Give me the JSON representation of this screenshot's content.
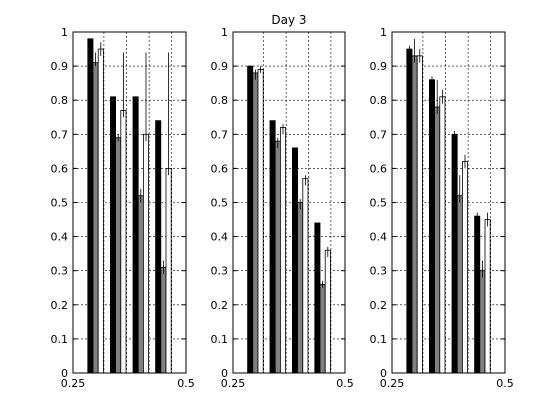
{
  "chart_data": [
    {
      "type": "bar",
      "title": "",
      "xlabel": "",
      "ylabel": "",
      "xlim": [
        0.25,
        0.5
      ],
      "ylim": [
        0,
        1
      ],
      "x_ticks": [
        0.25,
        0.5
      ],
      "x_tick_labels": [
        "0.25",
        "0.5"
      ],
      "y_ticks": [
        0,
        0.1,
        0.2,
        0.3,
        0.4,
        0.5,
        0.6,
        0.7,
        0.8,
        0.9,
        1
      ],
      "y_tick_labels": [
        "0",
        "0.1",
        "0.2",
        "0.3",
        "0.4",
        "0.5",
        "0.6",
        "0.7",
        "0.8",
        "0.9",
        "1"
      ],
      "grid": true,
      "group_x": [
        0.3,
        0.35,
        0.4,
        0.45
      ],
      "series": [
        {
          "color": "#000000",
          "values": [
            0.98,
            0.81,
            0.81,
            0.74
          ],
          "err_upper": [
            0.98,
            0.81,
            0.81,
            0.74
          ],
          "err_lower": [
            0.98,
            0.81,
            0.81,
            0.74
          ]
        },
        {
          "color": "#808080",
          "values": [
            0.91,
            0.69,
            0.52,
            0.31
          ],
          "err_upper": [
            0.94,
            0.7,
            0.54,
            0.33
          ],
          "err_lower": [
            0.9,
            0.68,
            0.5,
            0.29
          ]
        },
        {
          "color": "#ffffff",
          "values": [
            0.95,
            0.77,
            0.7,
            0.6
          ],
          "err_upper": [
            0.97,
            0.94,
            0.94,
            0.94
          ],
          "err_lower": [
            0.93,
            0.75,
            0.68,
            0.58
          ]
        }
      ]
    },
    {
      "type": "bar",
      "title": "Day 3",
      "xlabel": "",
      "ylabel": "",
      "xlim": [
        0.25,
        0.5
      ],
      "ylim": [
        0,
        1
      ],
      "x_ticks": [
        0.25,
        0.5
      ],
      "x_tick_labels": [
        "0.25",
        "0.5"
      ],
      "y_ticks": [
        0,
        0.1,
        0.2,
        0.3,
        0.4,
        0.5,
        0.6,
        0.7,
        0.8,
        0.9,
        1
      ],
      "y_tick_labels": [
        "0",
        "0.1",
        "0.2",
        "0.3",
        "0.4",
        "0.5",
        "0.6",
        "0.7",
        "0.8",
        "0.9",
        "1"
      ],
      "grid": true,
      "group_x": [
        0.3,
        0.35,
        0.4,
        0.45
      ],
      "series": [
        {
          "color": "#000000",
          "values": [
            0.9,
            0.74,
            0.66,
            0.44
          ],
          "err_upper": [
            0.9,
            0.74,
            0.66,
            0.44
          ],
          "err_lower": [
            0.9,
            0.74,
            0.66,
            0.44
          ]
        },
        {
          "color": "#808080",
          "values": [
            0.88,
            0.68,
            0.5,
            0.26
          ],
          "err_upper": [
            0.89,
            0.69,
            0.51,
            0.27
          ],
          "err_lower": [
            0.86,
            0.66,
            0.48,
            0.25
          ]
        },
        {
          "color": "#ffffff",
          "values": [
            0.89,
            0.72,
            0.57,
            0.36
          ],
          "err_upper": [
            0.9,
            0.73,
            0.58,
            0.37
          ],
          "err_lower": [
            0.88,
            0.7,
            0.55,
            0.34
          ]
        }
      ]
    },
    {
      "type": "bar",
      "title": "",
      "xlabel": "",
      "ylabel": "",
      "xlim": [
        0.25,
        0.5
      ],
      "ylim": [
        0,
        1
      ],
      "x_ticks": [
        0.25,
        0.5
      ],
      "x_tick_labels": [
        "0.25",
        "0.5"
      ],
      "y_ticks": [
        0,
        0.1,
        0.2,
        0.3,
        0.4,
        0.5,
        0.6,
        0.7,
        0.8,
        0.9,
        1
      ],
      "y_tick_labels": [
        "0",
        "0.1",
        "0.2",
        "0.3",
        "0.4",
        "0.5",
        "0.6",
        "0.7",
        "0.8",
        "0.9",
        "1"
      ],
      "grid": true,
      "group_x": [
        0.3,
        0.35,
        0.4,
        0.45
      ],
      "series": [
        {
          "color": "#000000",
          "values": [
            0.95,
            0.86,
            0.7,
            0.46
          ],
          "err_upper": [
            0.96,
            0.87,
            0.71,
            0.47
          ],
          "err_lower": [
            0.94,
            0.85,
            0.69,
            0.45
          ]
        },
        {
          "color": "#808080",
          "values": [
            0.93,
            0.78,
            0.52,
            0.3
          ],
          "err_upper": [
            0.98,
            0.86,
            0.58,
            0.33
          ],
          "err_lower": [
            0.91,
            0.76,
            0.5,
            0.28
          ]
        },
        {
          "color": "#ffffff",
          "values": [
            0.93,
            0.81,
            0.62,
            0.45
          ],
          "err_upper": [
            0.95,
            0.83,
            0.64,
            0.47
          ],
          "err_lower": [
            0.91,
            0.79,
            0.6,
            0.43
          ]
        }
      ]
    }
  ]
}
